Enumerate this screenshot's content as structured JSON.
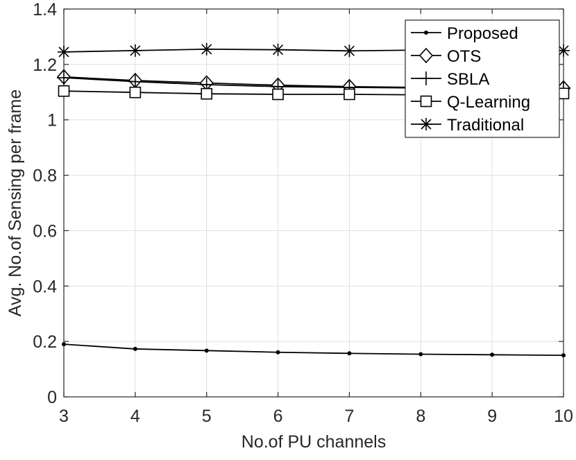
{
  "chart_data": {
    "type": "line",
    "title": "",
    "xlabel": "No.of PU channels",
    "ylabel": "Avg. No.of Sensing per frame",
    "xlim": [
      3,
      10
    ],
    "ylim": [
      0,
      1.4
    ],
    "xticks": [
      3,
      4,
      5,
      6,
      7,
      8,
      9,
      10
    ],
    "yticks": [
      0,
      0.2,
      0.4,
      0.6,
      0.8,
      1,
      1.2,
      1.4
    ],
    "xtick_labels": [
      "3",
      "4",
      "5",
      "6",
      "7",
      "8",
      "9",
      "10"
    ],
    "ytick_labels": [
      "0",
      "0.2",
      "0.4",
      "0.6",
      "0.8",
      "1",
      "1.2",
      "1.4"
    ],
    "grid": true,
    "legend_position": "top-right",
    "x": [
      3,
      4,
      5,
      6,
      7,
      8,
      9,
      10
    ],
    "series": [
      {
        "name": "Proposed",
        "marker": "dot",
        "color": "#000000",
        "values": [
          0.19,
          0.173,
          0.167,
          0.161,
          0.157,
          0.154,
          0.152,
          0.15
        ]
      },
      {
        "name": "OTS",
        "marker": "diamond",
        "color": "#000000",
        "values": [
          1.155,
          1.142,
          1.133,
          1.125,
          1.12,
          1.117,
          1.115,
          1.115
        ]
      },
      {
        "name": "SBLA",
        "marker": "plus",
        "color": "#000000",
        "values": [
          1.152,
          1.138,
          1.127,
          1.12,
          1.117,
          1.115,
          1.113,
          1.113
        ]
      },
      {
        "name": "Q-Learning",
        "marker": "square",
        "color": "#000000",
        "values": [
          1.104,
          1.099,
          1.094,
          1.092,
          1.092,
          1.09,
          1.09,
          1.095
        ]
      },
      {
        "name": "Traditional",
        "marker": "asterisk",
        "color": "#000000",
        "values": [
          1.245,
          1.25,
          1.255,
          1.253,
          1.249,
          1.252,
          1.252,
          1.25
        ]
      }
    ]
  }
}
